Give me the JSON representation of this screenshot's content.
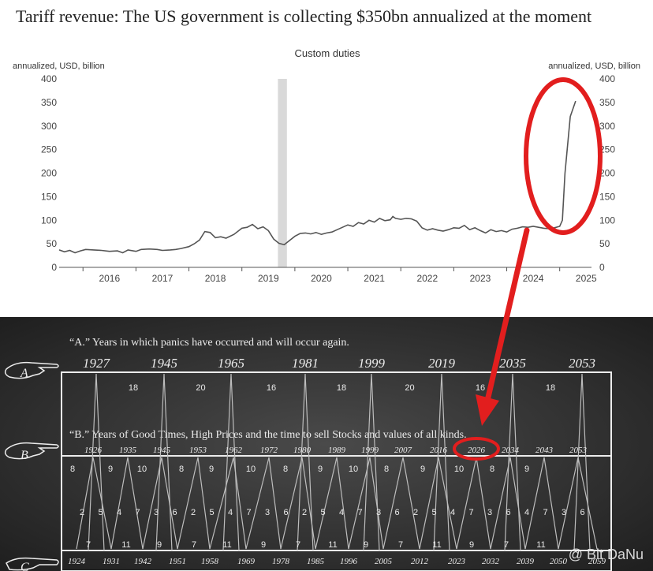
{
  "headline": "Tariff revenue: The US government is collecting $350bn annualized at the moment",
  "chart_data": {
    "type": "line",
    "title": "Custom duties",
    "ylabel_left": "annualized, USD, billion",
    "ylabel_right": "annualized, USD, billion",
    "ylim": [
      0,
      400
    ],
    "yticks": [
      "0",
      "50",
      "100",
      "150",
      "200",
      "250",
      "300",
      "350",
      "400"
    ],
    "xlim": [
      2015.55,
      2025.6
    ],
    "xticks": [
      "2016",
      "2017",
      "2018",
      "2019",
      "2020",
      "2021",
      "2022",
      "2023",
      "2024",
      "2025"
    ],
    "grid": false,
    "shaded_period": [
      2019.68,
      2019.85
    ],
    "series": [
      {
        "x": [
          2015.55,
          2015.65,
          2015.75,
          2015.85,
          2015.95,
          2016.05,
          2016.2,
          2016.35,
          2016.5,
          2016.65,
          2016.75,
          2016.85,
          2017.0,
          2017.1,
          2017.25,
          2017.4,
          2017.5,
          2017.65,
          2017.75,
          2017.85,
          2018.0,
          2018.1,
          2018.2,
          2018.3,
          2018.4,
          2018.5,
          2018.6,
          2018.7,
          2018.85,
          2019.0,
          2019.1,
          2019.2,
          2019.3,
          2019.4,
          2019.5,
          2019.6,
          2019.7,
          2019.8,
          2019.9,
          2020.0,
          2020.1,
          2020.2,
          2020.3,
          2020.4,
          2020.5,
          2020.6,
          2020.7,
          2020.8,
          2020.9,
          2021.0,
          2021.1,
          2021.2,
          2021.3,
          2021.4,
          2021.5,
          2021.6,
          2021.7,
          2021.8,
          2021.85,
          2021.9,
          2022.0,
          2022.1,
          2022.2,
          2022.3,
          2022.4,
          2022.5,
          2022.6,
          2022.7,
          2022.8,
          2022.9,
          2023.0,
          2023.1,
          2023.2,
          2023.3,
          2023.4,
          2023.5,
          2023.6,
          2023.7,
          2023.8,
          2023.9,
          2024.0,
          2024.1,
          2024.2,
          2024.3,
          2024.4,
          2024.5,
          2024.6,
          2024.7,
          2024.8,
          2024.9,
          2025.0,
          2025.05,
          2025.1,
          2025.2,
          2025.3
        ],
        "values": [
          37,
          33,
          36,
          31,
          35,
          38,
          37,
          36,
          34,
          35,
          31,
          37,
          34,
          38,
          39,
          38,
          36,
          37,
          38,
          40,
          44,
          50,
          58,
          76,
          74,
          63,
          65,
          62,
          70,
          83,
          85,
          91,
          82,
          86,
          78,
          60,
          51,
          48,
          57,
          66,
          72,
          73,
          71,
          74,
          70,
          73,
          75,
          80,
          85,
          90,
          87,
          95,
          92,
          100,
          96,
          104,
          99,
          101,
          108,
          104,
          102,
          104,
          103,
          98,
          84,
          79,
          82,
          79,
          77,
          80,
          84,
          83,
          89,
          80,
          84,
          78,
          73,
          80,
          76,
          78,
          75,
          81,
          83,
          86,
          85,
          87,
          85,
          83,
          82,
          84,
          87,
          100,
          200,
          320,
          353
        ]
      }
    ]
  },
  "panel": {
    "label_a": "“A.” Years in which panics have occurred and will occur again.",
    "label_b": "“B.” Years of Good Times, High Prices and the time to sell Stocks and values of all kinds.",
    "letter_a": "A",
    "letter_b": "B",
    "letter_c": "C",
    "years_a": [
      "1927",
      "1945",
      "1965",
      "1981",
      "1999",
      "2019",
      "2035",
      "2053"
    ],
    "intervals_a": [
      "18",
      "20",
      "16",
      "18",
      "20",
      "16",
      "18"
    ],
    "years_b": [
      "1926",
      "1935",
      "1945",
      "1953",
      "1962",
      "1972",
      "1980",
      "1989",
      "1999",
      "2007",
      "2016",
      "2026",
      "2034",
      "2043",
      "2053"
    ],
    "years_c": [
      "1924",
      "1931",
      "1942",
      "1951",
      "1958",
      "1969",
      "1978",
      "1985",
      "1996",
      "2005",
      "2012",
      "2023",
      "2032",
      "2039",
      "2050",
      "2059"
    ],
    "b_top_numbers": [
      "8",
      "9",
      "10",
      "8",
      "9",
      "10",
      "8",
      "9",
      "10",
      "8",
      "9",
      "10",
      "8",
      "9"
    ],
    "b_mid_numbers": [
      "2",
      "5",
      "4",
      "7",
      "3",
      "6",
      "2",
      "5",
      "4",
      "7",
      "3",
      "6",
      "2",
      "5",
      "4",
      "7",
      "3",
      "6",
      "2",
      "5",
      "4",
      "7",
      "3",
      "6",
      "4",
      "7",
      "3",
      "6"
    ],
    "b_bottom_numbers": [
      "7",
      "11",
      "9",
      "7",
      "11",
      "9",
      "7",
      "11",
      "9",
      "7",
      "11",
      "9",
      "7",
      "11"
    ],
    "watermark": "@ Bit DaNu"
  },
  "colors": {
    "line": "#555555",
    "shade": "#d9d9d9",
    "highlight": "#e21e1e",
    "panel_bg": "#2b2b2b",
    "panel_ink": "#ececec"
  }
}
